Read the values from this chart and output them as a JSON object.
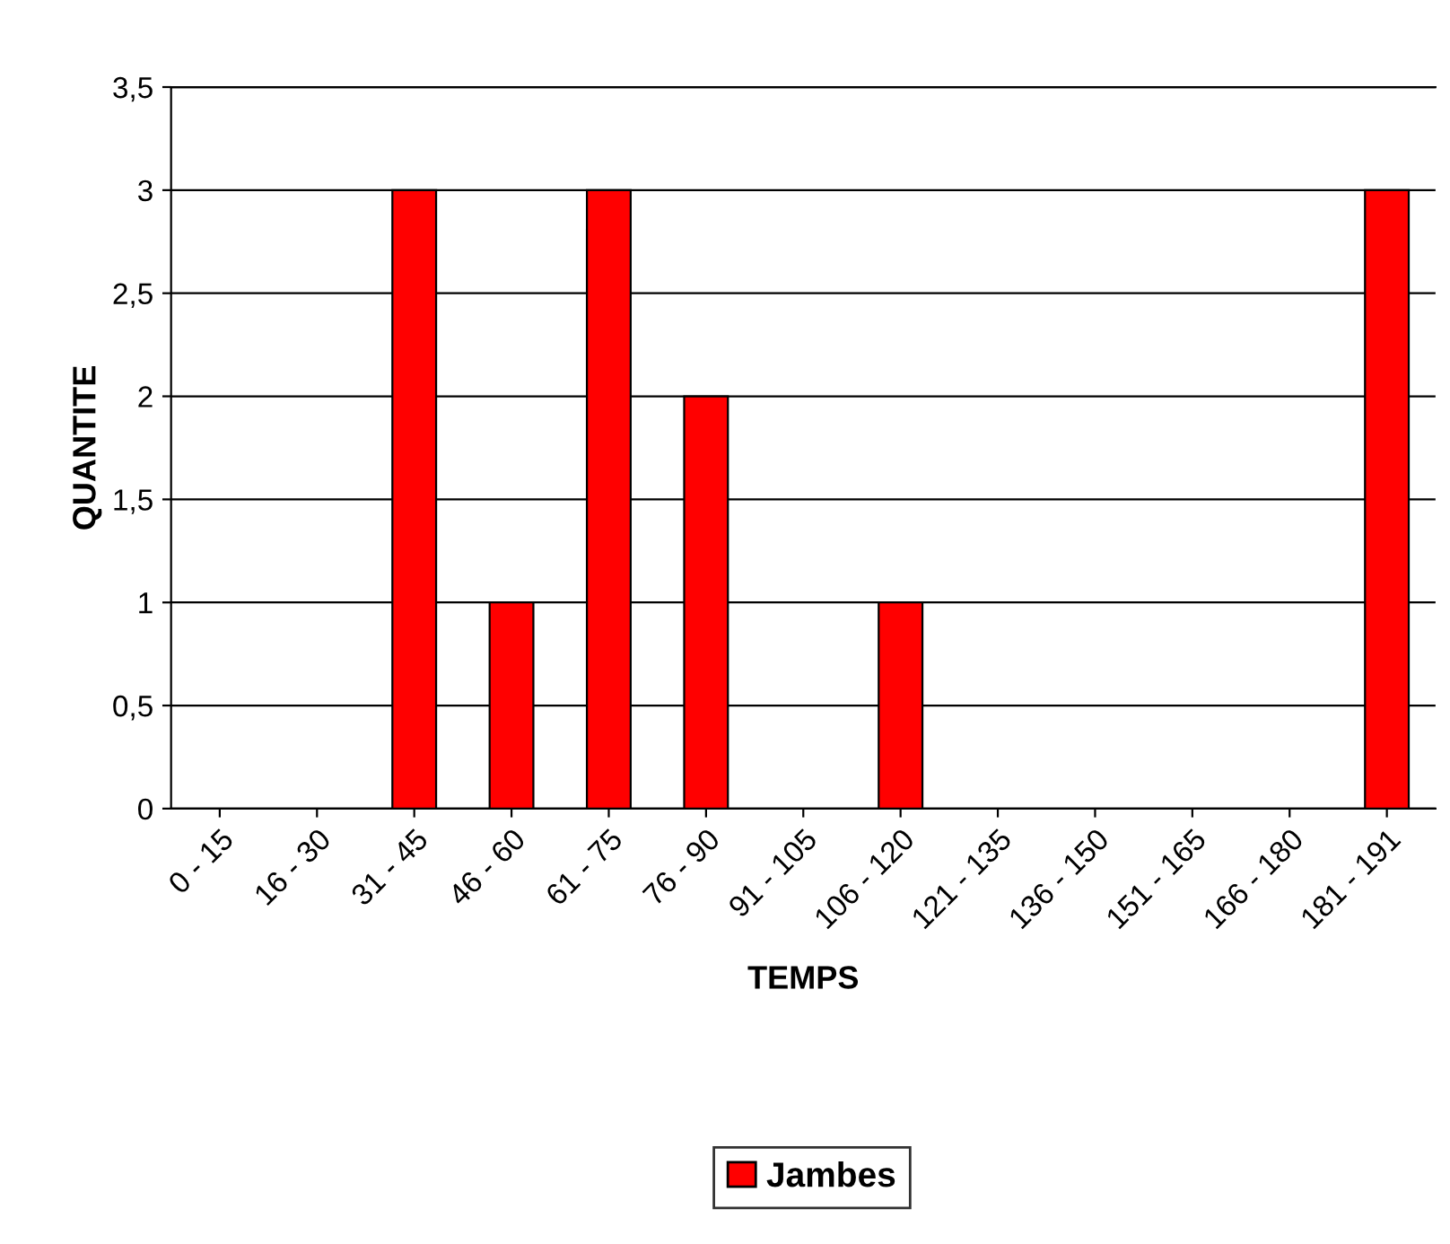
{
  "chart_data": {
    "type": "bar",
    "xlabel": "TEMPS",
    "ylabel": "QUANTITE",
    "categories": [
      "0 - 15",
      "16 - 30",
      "31 - 45",
      "46 - 60",
      "61 - 75",
      "76 - 90",
      "91 - 105",
      "106 - 120",
      "121 - 135",
      "136 - 150",
      "151 - 165",
      "166 - 180",
      "181 - 191"
    ],
    "series": [
      {
        "name": "Jambes",
        "color": "#ff0000",
        "values": [
          0,
          0,
          3,
          1,
          3,
          2,
          0,
          1,
          0,
          0,
          0,
          0,
          3
        ]
      }
    ],
    "ylim": [
      0,
      3.5
    ],
    "yticks": [
      {
        "value": 0,
        "label": "0"
      },
      {
        "value": 0.5,
        "label": "0,5"
      },
      {
        "value": 1,
        "label": "1"
      },
      {
        "value": 1.5,
        "label": "1,5"
      },
      {
        "value": 2,
        "label": "2"
      },
      {
        "value": 2.5,
        "label": "2,5"
      },
      {
        "value": 3,
        "label": "3"
      },
      {
        "value": 3.5,
        "label": "3,5"
      }
    ],
    "grid": "y",
    "legend": "bottom"
  }
}
